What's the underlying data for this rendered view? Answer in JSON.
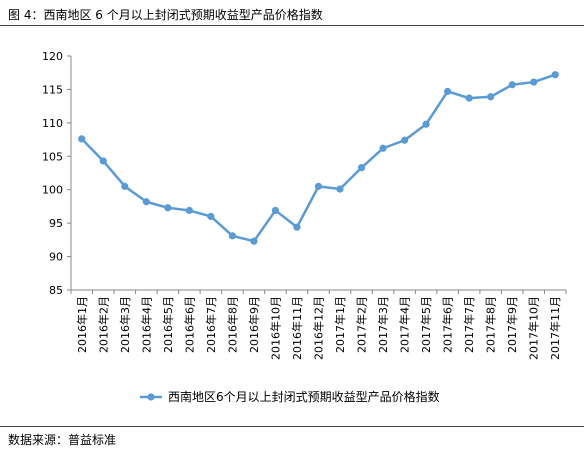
{
  "figure": {
    "title": "图 4：西南地区 6 个月以上封闭式预期收益型产品价格指数",
    "source": "数据来源：普益标准"
  },
  "chart_data": {
    "type": "line",
    "title": "",
    "xlabel": "",
    "ylabel": "",
    "ylim": [
      85,
      120
    ],
    "yticks": [
      85,
      90,
      95,
      100,
      105,
      110,
      115,
      120
    ],
    "grid": false,
    "legend_position": "bottom",
    "categories": [
      "2016年1月",
      "2016年2月",
      "2016年3月",
      "2016年4月",
      "2016年5月",
      "2016年6月",
      "2016年7月",
      "2016年8月",
      "2016年9月",
      "2016年10月",
      "2016年11月",
      "2016年12月",
      "2017年1月",
      "2017年2月",
      "2017年3月",
      "2017年4月",
      "2017年5月",
      "2017年6月",
      "2017年7月",
      "2017年8月",
      "2017年9月",
      "2017年10月",
      "2017年11月"
    ],
    "series": [
      {
        "name": "西南地区6个月以上封闭式预期收益型产品价格指数",
        "color": "#5b9bd5",
        "values": [
          107.6,
          104.3,
          100.5,
          98.2,
          97.3,
          96.9,
          96.0,
          93.1,
          92.3,
          96.9,
          94.4,
          100.5,
          100.1,
          103.3,
          106.2,
          107.4,
          109.8,
          114.7,
          113.7,
          113.9,
          115.7,
          116.1,
          117.2
        ]
      }
    ]
  }
}
